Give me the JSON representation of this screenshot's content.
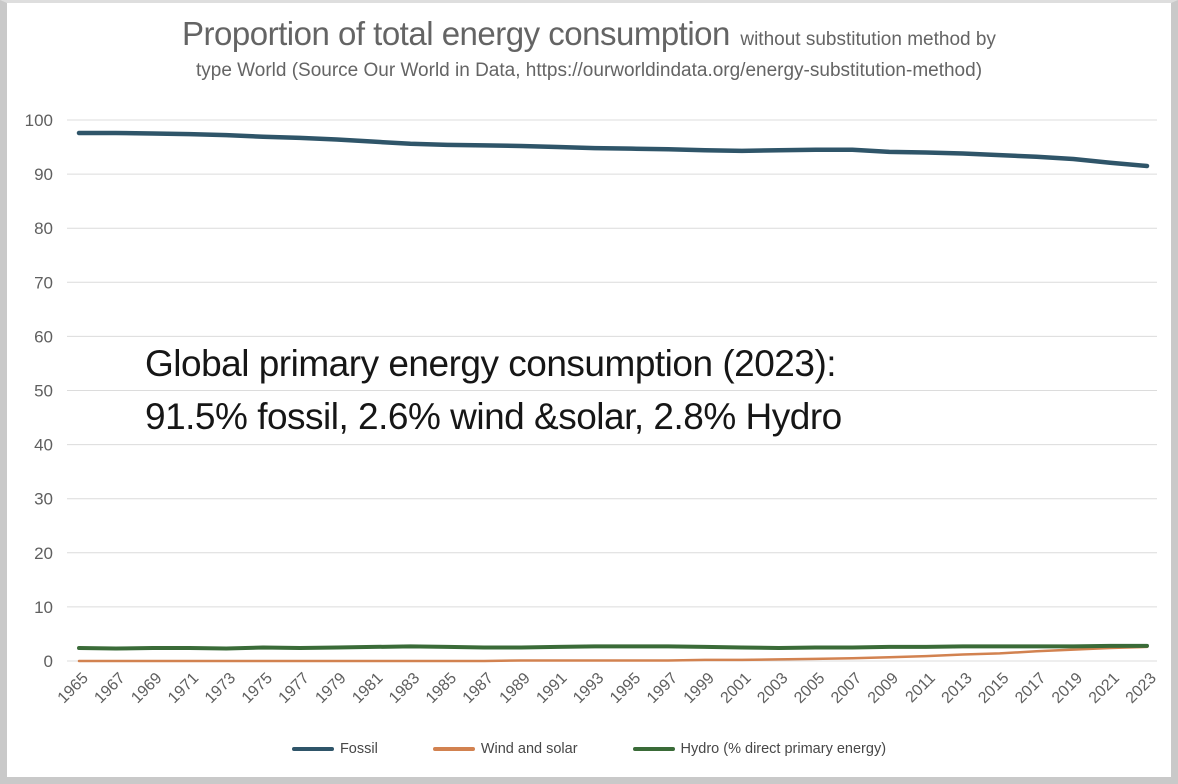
{
  "frame": {
    "background": "#ffffff",
    "border_color": "#c9c9c9"
  },
  "title": {
    "main": "Proportion of total energy consumption",
    "suffix": "without substitution method by",
    "line2": "type  World (Source Our World in Data,  https://ourworldindata.org/energy-substitution-method)"
  },
  "annotation": {
    "line1": "Global primary energy consumption (2023):",
    "line2": "91.5% fossil, 2.6% wind &solar, 2.8% Hydro"
  },
  "chart_data": {
    "type": "line",
    "title": "Proportion of total energy consumption without substitution method by type, World",
    "source": "Our World in Data, https://ourworldindata.org/energy-substitution-method",
    "x": [
      1965,
      1967,
      1969,
      1971,
      1973,
      1975,
      1977,
      1979,
      1981,
      1983,
      1985,
      1987,
      1989,
      1991,
      1993,
      1995,
      1997,
      1999,
      2001,
      2003,
      2005,
      2007,
      2009,
      2011,
      2013,
      2015,
      2017,
      2019,
      2021,
      2023
    ],
    "ylim": [
      0,
      100
    ],
    "yticks": [
      0,
      10,
      20,
      30,
      40,
      50,
      60,
      70,
      80,
      90,
      100
    ],
    "grid": "horizontal",
    "gridline_color": "#dcdcdc",
    "axis_label_color": "#5f5f5f",
    "legend_position": "bottom",
    "series": [
      {
        "name": "Fossil",
        "color": "#2f5569",
        "stroke_width": 4.5,
        "values": [
          97.6,
          97.6,
          97.5,
          97.4,
          97.2,
          96.9,
          96.7,
          96.4,
          96.0,
          95.6,
          95.4,
          95.3,
          95.2,
          95.0,
          94.8,
          94.7,
          94.6,
          94.4,
          94.3,
          94.4,
          94.5,
          94.5,
          94.1,
          94.0,
          93.8,
          93.5,
          93.2,
          92.8,
          92.1,
          91.5
        ]
      },
      {
        "name": "Wind and solar",
        "color": "#d28250",
        "stroke_width": 2.5,
        "values": [
          0.0,
          0.0,
          0.0,
          0.0,
          0.0,
          0.0,
          0.0,
          0.0,
          0.0,
          0.0,
          0.0,
          0.0,
          0.1,
          0.1,
          0.1,
          0.1,
          0.1,
          0.2,
          0.2,
          0.3,
          0.4,
          0.5,
          0.7,
          0.9,
          1.2,
          1.4,
          1.8,
          2.1,
          2.4,
          2.6
        ]
      },
      {
        "name": "Hydro (% direct primary energy)",
        "color": "#3a6b38",
        "stroke_width": 4,
        "values": [
          2.4,
          2.3,
          2.4,
          2.4,
          2.3,
          2.5,
          2.4,
          2.5,
          2.6,
          2.7,
          2.6,
          2.5,
          2.5,
          2.6,
          2.7,
          2.7,
          2.7,
          2.6,
          2.5,
          2.4,
          2.5,
          2.5,
          2.6,
          2.6,
          2.7,
          2.7,
          2.7,
          2.7,
          2.8,
          2.8
        ]
      }
    ]
  }
}
